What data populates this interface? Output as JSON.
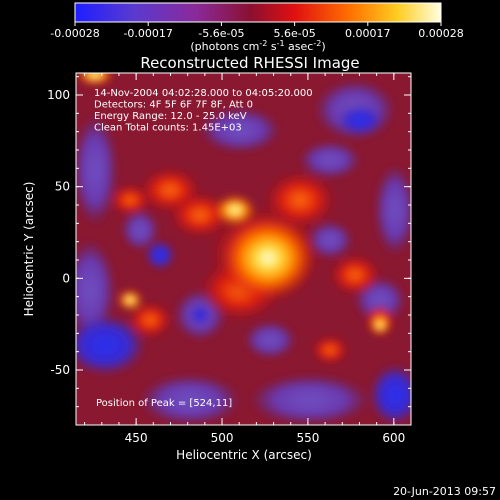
{
  "colorbar": {
    "tick_labels": [
      "-0.00028",
      "-0.00017",
      "-5.6e-05",
      "5.6e-05",
      "0.00017",
      "0.00028"
    ],
    "units_prefix": "(photons cm",
    "units_exp1": "-2",
    "units_mid": " s",
    "units_exp2": "-1",
    "units_mid2": " asec",
    "units_exp3": "-2",
    "units_suffix": ")",
    "range": [
      -0.00028,
      0.00028
    ],
    "colors": [
      "#1e1eff",
      "#6a3ab8",
      "#a0205a",
      "#e01010",
      "#ff6a00",
      "#ffcc20",
      "#ffffe0"
    ]
  },
  "image": {
    "title": "Reconstructed RHESSI Image",
    "info_lines": [
      "14-Nov-2004 04:02:28.000 to 04:05:20.000",
      "Detectors: 4F 5F 6F 7F 8F, Att 0",
      "Energy Range: 12.0 - 25.0 keV",
      "Clean     Total counts: 1.45E+03"
    ],
    "peak_label": "Position of Peak = [524,11]",
    "x_axis_label": "Heliocentric X (arcsec)",
    "y_axis_label": "Heliocentric Y (arcsec)",
    "x_ticks": [
      "450",
      "500",
      "550",
      "600"
    ],
    "y_ticks": [
      "100",
      "50",
      "0",
      "-50"
    ],
    "x_range": [
      415,
      610
    ],
    "y_range": [
      -80,
      112
    ]
  },
  "footer": {
    "date": "20-Jun-2013 09:57"
  }
}
